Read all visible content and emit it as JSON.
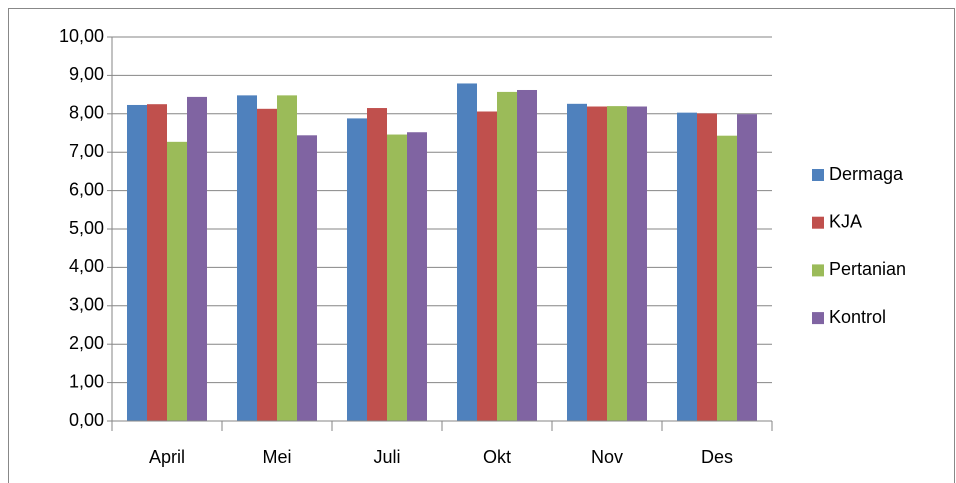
{
  "chart_data": {
    "type": "bar",
    "categories": [
      "April",
      "Mei",
      "Juli",
      "Okt",
      "Nov",
      "Des"
    ],
    "series": [
      {
        "name": "Dermaga",
        "color": "#4f81bd",
        "values": [
          8.23,
          8.48,
          7.88,
          8.79,
          8.26,
          8.03
        ]
      },
      {
        "name": "KJA",
        "color": "#c0504d",
        "values": [
          8.25,
          8.13,
          8.15,
          8.06,
          8.19,
          8.01
        ]
      },
      {
        "name": "Pertanian",
        "color": "#9bbb59",
        "values": [
          7.27,
          8.48,
          7.46,
          8.57,
          8.2,
          7.43
        ]
      },
      {
        "name": "Kontrol",
        "color": "#8064a2",
        "values": [
          8.44,
          7.44,
          7.52,
          8.62,
          8.19,
          7.99
        ]
      }
    ],
    "ylim": [
      0,
      10
    ],
    "yticks": [
      {
        "value": 0,
        "label": "0,00"
      },
      {
        "value": 1,
        "label": "1,00"
      },
      {
        "value": 2,
        "label": "2,00"
      },
      {
        "value": 3,
        "label": "3,00"
      },
      {
        "value": 4,
        "label": "4,00"
      },
      {
        "value": 5,
        "label": "5,00"
      },
      {
        "value": 6,
        "label": "6,00"
      },
      {
        "value": 7,
        "label": "7,00"
      },
      {
        "value": 8,
        "label": "8,00"
      },
      {
        "value": 9,
        "label": "9,00"
      },
      {
        "value": 10,
        "label": "10,00"
      }
    ],
    "grid": true,
    "legend": "right"
  }
}
